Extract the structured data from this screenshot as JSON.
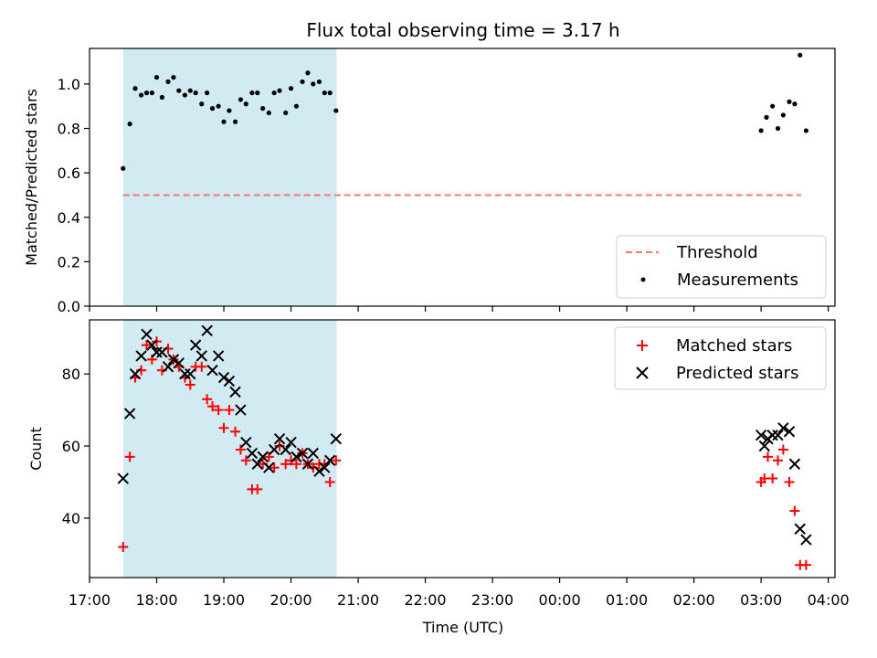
{
  "chart_data": {
    "title": "Flux total observing time = 3.17 h",
    "xlabel": "Time (UTC)",
    "x_ticks": [
      "17:00",
      "18:00",
      "19:00",
      "20:00",
      "21:00",
      "22:00",
      "23:00",
      "00:00",
      "01:00",
      "02:00",
      "03:00",
      "04:00"
    ],
    "x_range_hours": [
      17.0,
      28.1
    ],
    "observing_span_hours": [
      17.5,
      20.68
    ],
    "colors": {
      "span": "#add8e6",
      "threshold": "#ff6666",
      "measurements": "#000000",
      "matched": "#ff0000",
      "predicted": "#000000"
    },
    "top": {
      "type": "scatter",
      "ylabel": "Matched/Predicted stars",
      "ylim": [
        0.0,
        1.16
      ],
      "y_ticks": [
        "0.0",
        "0.2",
        "0.4",
        "0.6",
        "0.8",
        "1.0"
      ],
      "legend_position": "lower-right",
      "threshold": {
        "name": "Threshold",
        "value": 0.5,
        "x_range": [
          17.5,
          27.6
        ]
      },
      "measurements": {
        "name": "Measurements",
        "x": [
          17.5,
          17.6,
          17.68,
          17.77,
          17.85,
          17.93,
          18.0,
          18.08,
          18.17,
          18.25,
          18.33,
          18.42,
          18.5,
          18.58,
          18.67,
          18.75,
          18.83,
          18.92,
          19.0,
          19.08,
          19.17,
          19.25,
          19.33,
          19.42,
          19.5,
          19.58,
          19.67,
          19.75,
          19.83,
          19.92,
          20.0,
          20.08,
          20.17,
          20.25,
          20.33,
          20.42,
          20.5,
          20.58,
          20.67,
          27.0,
          27.08,
          27.17,
          27.25,
          27.33,
          27.42,
          27.5,
          27.58,
          27.67
        ],
        "y": [
          0.62,
          0.82,
          0.98,
          0.95,
          0.96,
          0.96,
          1.03,
          0.94,
          1.01,
          1.03,
          0.97,
          0.95,
          0.97,
          0.96,
          0.91,
          0.96,
          0.89,
          0.9,
          0.83,
          0.88,
          0.83,
          0.93,
          0.91,
          0.96,
          0.96,
          0.89,
          0.87,
          0.96,
          0.97,
          0.87,
          0.98,
          0.9,
          1.01,
          1.05,
          1.0,
          1.01,
          0.96,
          0.96,
          0.88,
          0.79,
          0.85,
          0.9,
          0.8,
          0.86,
          0.92,
          0.91,
          1.13,
          0.79
        ]
      }
    },
    "bottom": {
      "type": "scatter",
      "ylabel": "Count",
      "ylim": [
        23.5,
        95.0
      ],
      "y_ticks": [
        "40",
        "60",
        "80"
      ],
      "legend_position": "upper-right",
      "x": [
        17.5,
        17.6,
        17.68,
        17.77,
        17.85,
        17.93,
        18.0,
        18.08,
        18.17,
        18.25,
        18.33,
        18.42,
        18.5,
        18.58,
        18.67,
        18.75,
        18.83,
        18.92,
        19.0,
        19.08,
        19.17,
        19.25,
        19.33,
        19.42,
        19.5,
        19.58,
        19.67,
        19.75,
        19.83,
        19.92,
        20.0,
        20.08,
        20.17,
        20.25,
        20.33,
        20.42,
        20.5,
        20.58,
        20.67,
        27.0,
        27.05,
        27.1,
        27.17,
        27.25,
        27.33,
        27.42,
        27.5,
        27.58,
        27.67
      ],
      "series": [
        {
          "name": "Matched stars",
          "marker": "plus",
          "values": [
            32,
            57,
            79,
            81,
            88,
            84,
            89,
            81,
            87,
            84,
            82,
            79,
            77,
            82,
            82,
            73,
            71,
            70,
            65,
            70,
            64,
            59,
            56,
            48,
            48,
            55,
            57,
            54,
            60,
            55,
            56,
            55,
            58,
            55,
            54,
            55,
            55,
            50,
            56,
            50,
            51,
            57,
            51,
            56,
            59,
            50,
            42,
            27,
            27
          ]
        },
        {
          "name": "Predicted stars",
          "marker": "x",
          "values": [
            51,
            69,
            80,
            85,
            91,
            88,
            86,
            86,
            82,
            84,
            83,
            80,
            80,
            88,
            85,
            92,
            81,
            85,
            79,
            78,
            75,
            70,
            61,
            58,
            55,
            57,
            54,
            59,
            62,
            59,
            61,
            57,
            58,
            55,
            58,
            53,
            54,
            56,
            62,
            63,
            60,
            62,
            63,
            63,
            65,
            64,
            55,
            37,
            34
          ]
        }
      ]
    }
  }
}
